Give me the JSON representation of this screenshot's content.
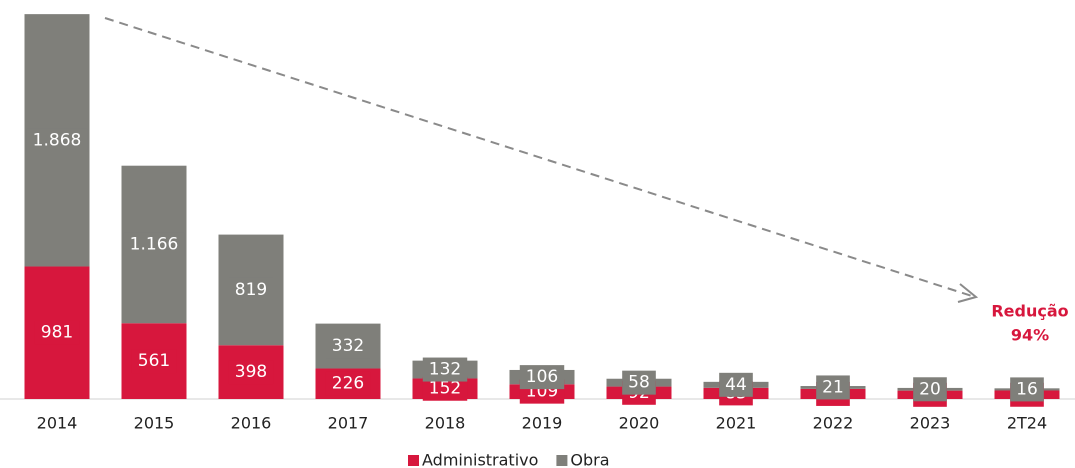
{
  "chart_data": {
    "type": "stacked_bar",
    "categories": [
      "2014",
      "2015",
      "2016",
      "2017",
      "2018",
      "2019",
      "2020",
      "2021",
      "2022",
      "2023",
      "2T24"
    ],
    "series": [
      {
        "name": "Administrativo",
        "color": "#d7173d",
        "values": [
          981,
          561,
          398,
          226,
          152,
          109,
          92,
          83,
          75,
          62,
          63
        ]
      },
      {
        "name": "Obra",
        "color": "#7f7f7a",
        "values": [
          1868,
          1166,
          819,
          332,
          132,
          106,
          58,
          44,
          21,
          20,
          16
        ],
        "value_labels": [
          "1.868",
          "1.166",
          "819",
          "332",
          "132",
          "106",
          "58",
          "44",
          "21",
          "20",
          "16"
        ]
      }
    ],
    "ylim": [
      0,
      2850
    ],
    "annotation": {
      "title": "Redução",
      "value": "94%"
    },
    "legend": "bottom"
  }
}
